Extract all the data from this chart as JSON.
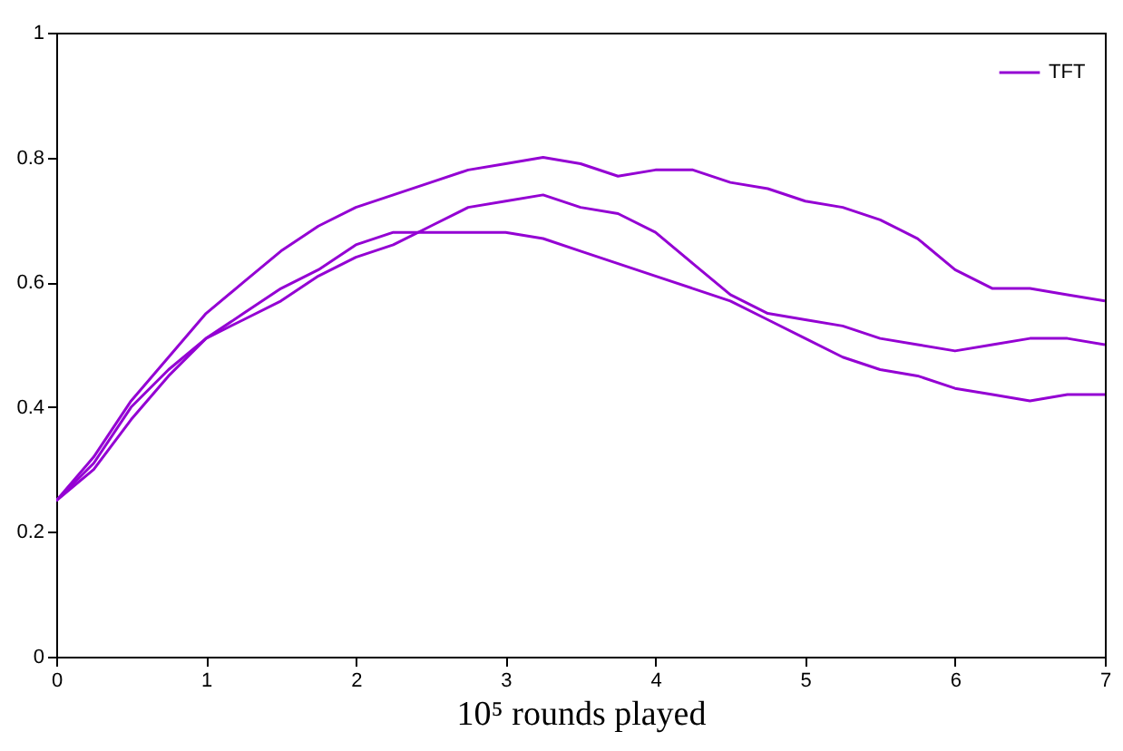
{
  "chart_data": {
    "type": "line",
    "xlabel": "10⁵ rounds played",
    "xlim": [
      0,
      7
    ],
    "xticks": [
      0,
      1,
      2,
      3,
      4,
      5,
      6,
      7
    ],
    "ylim": [
      0,
      1
    ],
    "yticks": [
      0,
      0.2,
      0.4,
      0.6,
      0.8,
      1
    ],
    "legend": "top right",
    "line_style": "solid",
    "x": [
      0,
      0.25,
      0.5,
      0.75,
      1,
      1.25,
      1.5,
      1.75,
      2,
      2.25,
      2.5,
      2.75,
      3,
      3.25,
      3.5,
      3.75,
      4,
      4.25,
      4.5,
      4.75,
      5,
      5.25,
      5.5,
      5.75,
      6,
      6.25,
      6.5,
      6.75,
      7
    ],
    "series": [
      {
        "name": "TFT",
        "color": "#9400d3",
        "values": [
          0.25,
          0.32,
          0.41,
          0.48,
          0.55,
          0.6,
          0.65,
          0.69,
          0.72,
          0.74,
          0.76,
          0.78,
          0.79,
          0.8,
          0.79,
          0.77,
          0.78,
          0.78,
          0.76,
          0.75,
          0.73,
          0.72,
          0.7,
          0.67,
          0.62,
          0.59,
          0.59,
          0.58,
          0.57
        ]
      },
      {
        "color": "#9400d3",
        "values": [
          0.25,
          0.3,
          0.38,
          0.45,
          0.51,
          0.54,
          0.57,
          0.61,
          0.64,
          0.66,
          0.69,
          0.72,
          0.73,
          0.74,
          0.72,
          0.71,
          0.68,
          0.63,
          0.58,
          0.55,
          0.54,
          0.53,
          0.51,
          0.5,
          0.49,
          0.5,
          0.51,
          0.51,
          0.5
        ]
      },
      {
        "color": "#9400d3",
        "values": [
          0.25,
          0.31,
          0.4,
          0.46,
          0.51,
          0.55,
          0.59,
          0.62,
          0.66,
          0.68,
          0.68,
          0.68,
          0.68,
          0.67,
          0.65,
          0.63,
          0.61,
          0.59,
          0.57,
          0.54,
          0.51,
          0.48,
          0.46,
          0.45,
          0.43,
          0.42,
          0.41,
          0.42,
          0.42
        ]
      }
    ]
  }
}
